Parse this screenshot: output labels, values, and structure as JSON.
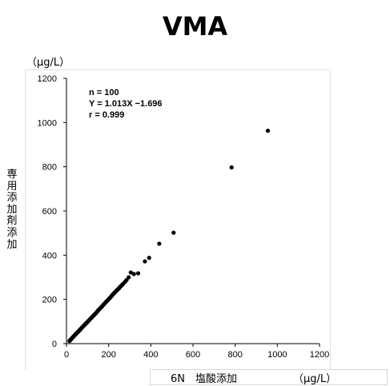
{
  "chart_data": {
    "type": "scatter",
    "title": "VMA",
    "y_unit": "（μg/L）",
    "xlabel": "6N　塩酸添加",
    "x_unit": "（μg/L）",
    "ylabel": "専用添加剤添加",
    "xlim": [
      0,
      1200
    ],
    "ylim": [
      0,
      1200
    ],
    "x_ticks": [
      "0",
      "200",
      "400",
      "600",
      "800",
      "1000",
      "1200"
    ],
    "y_ticks": [
      "0",
      "200",
      "400",
      "600",
      "800",
      "1000",
      "1200"
    ],
    "grid": false,
    "annotations": [
      "n = 100",
      "Y = 1.013X −1.696",
      "r = 0.999"
    ],
    "series": [
      {
        "color": "#000000",
        "points": [
          [
            14,
            12
          ],
          [
            18,
            15
          ],
          [
            22,
            20
          ],
          [
            25,
            24
          ],
          [
            28,
            27
          ],
          [
            31,
            30
          ],
          [
            34,
            33
          ],
          [
            37,
            36
          ],
          [
            40,
            39
          ],
          [
            43,
            42
          ],
          [
            46,
            45
          ],
          [
            50,
            49
          ],
          [
            53,
            52
          ],
          [
            56,
            55
          ],
          [
            60,
            58
          ],
          [
            63,
            62
          ],
          [
            66,
            65
          ],
          [
            70,
            69
          ],
          [
            74,
            73
          ],
          [
            78,
            77
          ],
          [
            82,
            81
          ],
          [
            86,
            85
          ],
          [
            90,
            89
          ],
          [
            95,
            94
          ],
          [
            100,
            99
          ],
          [
            105,
            104
          ],
          [
            110,
            109
          ],
          [
            115,
            114
          ],
          [
            120,
            119
          ],
          [
            125,
            124
          ],
          [
            130,
            129
          ],
          [
            135,
            134
          ],
          [
            140,
            139
          ],
          [
            145,
            144
          ],
          [
            150,
            150
          ],
          [
            155,
            155
          ],
          [
            160,
            160
          ],
          [
            165,
            165
          ],
          [
            170,
            170
          ],
          [
            175,
            176
          ],
          [
            180,
            181
          ],
          [
            185,
            186
          ],
          [
            190,
            191
          ],
          [
            195,
            196
          ],
          [
            200,
            201
          ],
          [
            205,
            206
          ],
          [
            210,
            211
          ],
          [
            215,
            217
          ],
          [
            220,
            222
          ],
          [
            225,
            227
          ],
          [
            230,
            232
          ],
          [
            235,
            237
          ],
          [
            240,
            242
          ],
          [
            245,
            247
          ],
          [
            250,
            252
          ],
          [
            255,
            257
          ],
          [
            260,
            262
          ],
          [
            265,
            267
          ],
          [
            270,
            272
          ],
          [
            278,
            280
          ],
          [
            285,
            288
          ],
          [
            295,
            300
          ],
          [
            305,
            322
          ],
          [
            320,
            315
          ],
          [
            340,
            318
          ],
          [
            372,
            372
          ],
          [
            392,
            388
          ],
          [
            440,
            452
          ],
          [
            508,
            502
          ],
          [
            783,
            797
          ],
          [
            955,
            963
          ],
          [
            24,
            22
          ],
          [
            48,
            47
          ],
          [
            58,
            57
          ],
          [
            72,
            71
          ],
          [
            88,
            86
          ],
          [
            98,
            96
          ],
          [
            108,
            106
          ],
          [
            118,
            116
          ],
          [
            128,
            126
          ],
          [
            138,
            136
          ],
          [
            148,
            148
          ],
          [
            158,
            158
          ],
          [
            168,
            167
          ],
          [
            178,
            179
          ],
          [
            188,
            189
          ],
          [
            198,
            199
          ],
          [
            208,
            209
          ],
          [
            218,
            221
          ],
          [
            228,
            231
          ],
          [
            238,
            241
          ],
          [
            248,
            249
          ],
          [
            258,
            260
          ],
          [
            268,
            270
          ],
          [
            16,
            14
          ],
          [
            20,
            19
          ],
          [
            33,
            32
          ],
          [
            44,
            43
          ],
          [
            65,
            63
          ],
          [
            93,
            92
          ]
        ]
      }
    ]
  }
}
